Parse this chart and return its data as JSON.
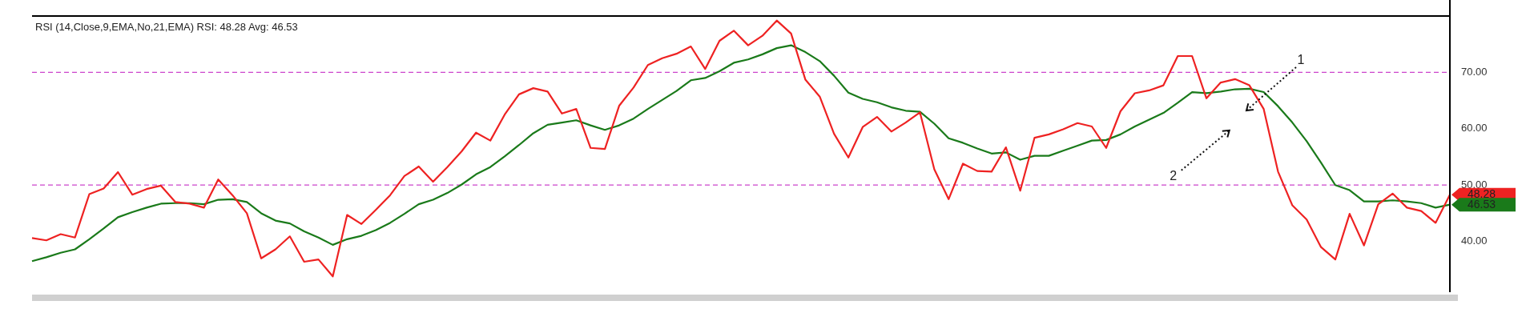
{
  "chart_data": {
    "type": "line",
    "title": "RSI (14,Close,9,EMA,No,21,EMA) RSI: 48.28 Avg: 46.53",
    "categories": [
      null,
      null,
      null,
      null,
      null,
      null,
      null,
      null,
      null,
      null,
      null,
      null,
      null,
      null,
      null,
      null,
      null,
      null,
      null,
      null,
      null,
      null,
      null,
      null,
      null,
      null,
      null,
      null,
      null,
      null,
      null,
      null,
      null,
      null,
      null,
      null,
      null,
      null,
      null,
      null,
      null,
      null,
      null,
      null,
      null,
      null,
      null,
      null,
      null,
      null,
      null,
      null,
      null,
      null,
      null,
      null,
      null,
      null,
      null,
      null,
      null,
      null,
      null,
      null,
      null,
      null,
      null,
      null,
      null,
      null,
      null,
      null,
      null,
      null,
      null,
      null,
      null,
      null,
      null,
      null,
      null,
      null,
      null,
      null,
      null,
      null,
      null,
      null,
      null,
      null,
      null,
      null,
      null,
      null,
      null,
      null,
      null,
      null,
      null,
      null
    ],
    "series": [
      {
        "color": "#ee2222",
        "values": [
          40.6,
          40.2,
          41.3,
          40.7,
          48.4,
          49.4,
          52.3,
          48.3,
          49.3,
          49.9,
          47.0,
          46.7,
          46.0,
          51.0,
          48.2,
          45.0,
          37.0,
          38.6,
          40.9,
          36.4,
          36.8,
          33.8,
          44.7,
          43.1,
          45.6,
          48.2,
          51.6,
          53.3,
          50.6,
          53.2,
          56.0,
          59.3,
          57.9,
          62.5,
          66.1,
          67.2,
          66.6,
          62.7,
          63.5,
          56.6,
          56.4,
          64.1,
          67.3,
          71.3,
          72.5,
          73.3,
          74.6,
          70.6,
          75.6,
          77.4,
          74.8,
          76.5,
          79.2,
          76.9,
          68.7,
          65.7,
          59.1,
          54.9,
          60.3,
          62.1,
          59.5,
          61.1,
          62.9,
          52.8,
          47.5,
          53.8,
          52.5,
          52.4,
          56.7,
          49.0,
          58.4,
          59.0,
          59.9,
          61.0,
          60.4,
          56.6,
          63.1,
          66.3,
          66.8,
          67.7,
          72.9,
          72.9,
          65.4,
          68.2,
          68.8,
          67.7,
          63.5,
          52.4,
          46.4,
          43.9,
          39.0,
          36.8,
          44.9,
          39.3,
          46.6,
          48.5,
          46.0,
          45.4,
          43.3,
          48.28
        ],
        "value_labels": [
          null,
          null,
          null,
          null,
          null,
          null,
          null,
          null,
          null,
          null,
          null,
          null,
          null,
          null,
          null,
          null,
          null,
          null,
          null,
          null,
          null,
          null,
          null,
          null,
          null,
          null,
          null,
          null,
          null,
          null,
          null,
          null,
          null,
          null,
          null,
          null,
          null,
          null,
          null,
          null,
          null,
          null,
          null,
          null,
          null,
          null,
          null,
          null,
          null,
          null,
          null,
          null,
          null,
          null,
          null,
          null,
          null,
          null,
          null,
          null,
          null,
          null,
          null,
          null,
          null,
          null,
          null,
          null,
          null,
          null,
          null,
          null,
          null,
          null,
          null,
          null,
          null,
          null,
          null,
          null,
          null,
          null,
          null,
          null,
          null,
          null,
          null,
          null,
          null,
          null,
          null,
          null,
          null,
          null,
          null,
          null,
          null,
          null,
          null,
          "48.28"
        ]
      },
      {
        "color": "#1a7a1a",
        "values": [
          36.5,
          37.2,
          38.0,
          38.6,
          40.4,
          42.3,
          44.3,
          45.2,
          46.0,
          46.7,
          46.8,
          46.8,
          46.6,
          47.4,
          47.5,
          47.0,
          45.0,
          43.7,
          43.2,
          41.8,
          40.7,
          39.4,
          40.4,
          41.0,
          42.0,
          43.3,
          44.9,
          46.6,
          47.4,
          48.6,
          50.1,
          51.9,
          53.2,
          55.1,
          57.1,
          59.2,
          60.7,
          61.1,
          61.5,
          60.6,
          59.8,
          60.6,
          61.8,
          63.5,
          65.1,
          66.7,
          68.6,
          69.0,
          70.2,
          71.7,
          72.3,
          73.2,
          74.3,
          74.8,
          73.6,
          72.0,
          69.4,
          66.4,
          65.3,
          64.7,
          63.8,
          63.2,
          63.0,
          60.9,
          58.3,
          57.5,
          56.5,
          55.6,
          55.8,
          54.5,
          55.2,
          55.2,
          56.1,
          57.0,
          57.9,
          58.0,
          59.0,
          60.4,
          61.6,
          62.8,
          64.6,
          66.5,
          66.3,
          66.6,
          67.0,
          67.1,
          66.5,
          64.0,
          61.1,
          57.8,
          54.0,
          50.0,
          49.1,
          47.1,
          47.1,
          47.3,
          47.1,
          46.8,
          46.0,
          46.53
        ],
        "value_labels": [
          null,
          null,
          null,
          null,
          null,
          null,
          null,
          null,
          null,
          null,
          null,
          null,
          null,
          null,
          null,
          null,
          null,
          null,
          null,
          null,
          null,
          null,
          null,
          null,
          null,
          null,
          null,
          null,
          null,
          null,
          null,
          null,
          null,
          null,
          null,
          null,
          null,
          null,
          null,
          null,
          null,
          null,
          null,
          null,
          null,
          null,
          null,
          null,
          null,
          null,
          null,
          null,
          null,
          null,
          null,
          null,
          null,
          null,
          null,
          null,
          null,
          null,
          null,
          null,
          null,
          null,
          null,
          null,
          null,
          null,
          null,
          null,
          null,
          null,
          null,
          null,
          null,
          null,
          null,
          null,
          null,
          null,
          null,
          null,
          null,
          null,
          null,
          null,
          null,
          null,
          null,
          null,
          null,
          null,
          null,
          null,
          null,
          null,
          null,
          "46.53"
        ]
      }
    ],
    "ylim": [
      31,
      80
    ],
    "yticks": [
      {
        "value": 40,
        "label": "40.00"
      },
      {
        "value": 50,
        "label": "50.00"
      },
      {
        "value": 60,
        "label": "60.00"
      },
      {
        "value": 70,
        "label": "70.00"
      }
    ],
    "tick_labels": "y",
    "grid": false,
    "marker": "none",
    "ref_lines": [
      {
        "axis": "y",
        "value": 70,
        "color": "#cc44cc",
        "line_style": "dashed"
      },
      {
        "axis": "y",
        "value": 50,
        "color": "#cc44cc",
        "line_style": "dashed"
      }
    ],
    "annotations": [
      "1",
      "2"
    ]
  }
}
